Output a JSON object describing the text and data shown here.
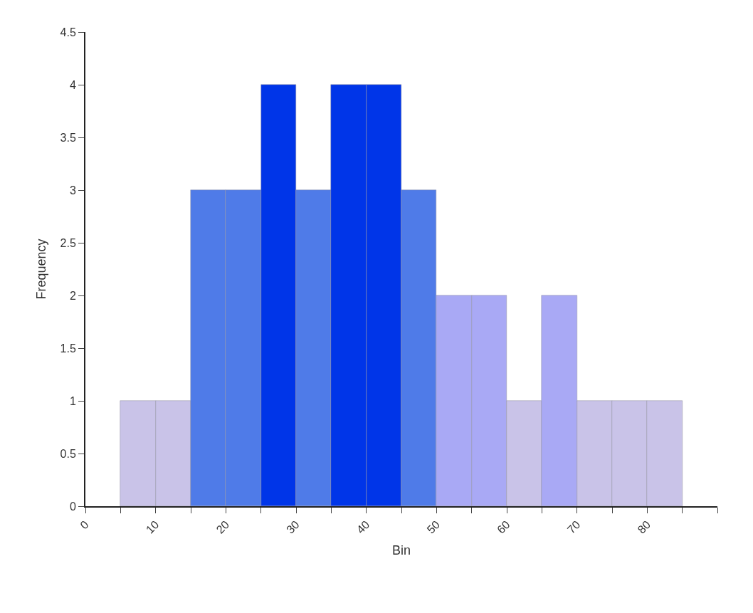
{
  "chart_data": {
    "type": "histogram",
    "xlabel": "Bin",
    "ylabel": "Frequency",
    "bins": [
      5,
      10,
      15,
      20,
      25,
      30,
      35,
      40,
      45,
      50,
      55,
      60,
      65,
      70,
      75,
      80,
      85
    ],
    "values": [
      1,
      1,
      3,
      3,
      4,
      3,
      4,
      4,
      3,
      2,
      2,
      1,
      2,
      1,
      1,
      1
    ],
    "colors": [
      "#c9c3e8",
      "#c9c3e8",
      "#4f7be8",
      "#4f7be8",
      "#0035e8",
      "#4f7be8",
      "#0035e8",
      "#0035e8",
      "#4f7be8",
      "#a9a9f5",
      "#a9a9f5",
      "#c9c3e8",
      "#a9a9f5",
      "#c9c3e8",
      "#c9c3e8",
      "#c9c3e8"
    ],
    "xlim": [
      0,
      90
    ],
    "xticks": [
      0,
      {
        "value": 5,
        "label": null
      },
      10,
      {
        "value": 15,
        "label": null
      },
      20,
      {
        "value": 25,
        "label": null
      },
      30,
      {
        "value": 35,
        "label": null
      },
      40,
      {
        "value": 45,
        "label": null
      },
      50,
      {
        "value": 55,
        "label": null
      },
      60,
      {
        "value": 65,
        "label": null
      },
      70,
      {
        "value": 75,
        "label": null
      },
      80,
      {
        "value": 85,
        "label": null
      },
      {
        "value": 90,
        "label": null
      }
    ],
    "ylim": [
      0,
      4.5
    ],
    "yticks": [
      0,
      0.5,
      1,
      1.5,
      2,
      2.5,
      3,
      3.5,
      4,
      4.5
    ]
  }
}
